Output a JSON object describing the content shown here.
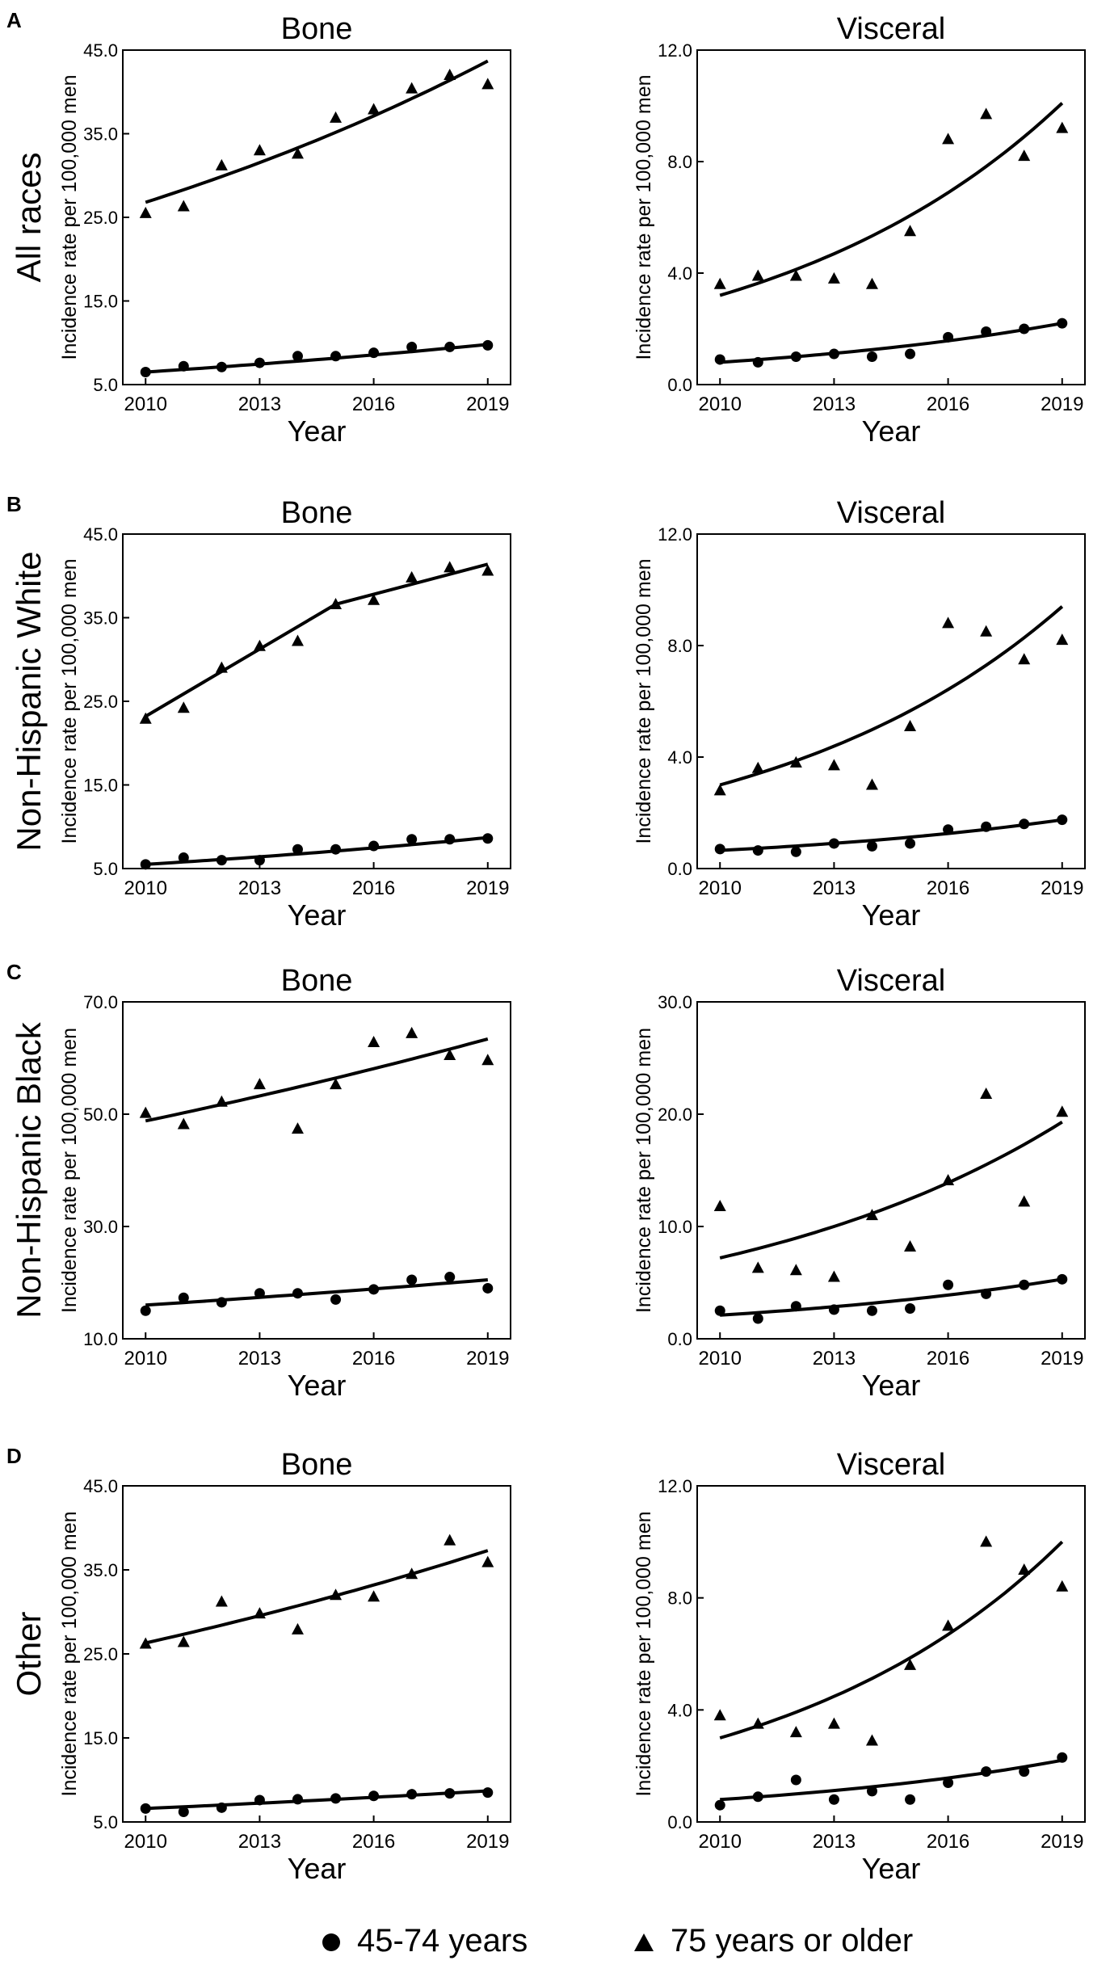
{
  "figure": {
    "legend": [
      {
        "label": "45-74 years",
        "marker": "circle"
      },
      {
        "label": "75 years or older",
        "marker": "triangle"
      }
    ]
  },
  "chart_data": [
    {
      "type": "scatter",
      "panel_letter": "A",
      "row_label": "All races",
      "title": "Bone",
      "xlabel": "Year",
      "ylabel": "Incidence rate per 100,000 men",
      "xlim": [
        2009.4,
        2019.6
      ],
      "ylim": [
        5,
        45
      ],
      "yticks": [
        "5.0",
        "15.0",
        "25.0",
        "35.0",
        "45.0"
      ],
      "xticks": [
        2010,
        2013,
        2016,
        2019
      ],
      "series": [
        {
          "name": "45-74 years",
          "marker": "circle",
          "x": [
            2010,
            2011,
            2012,
            2013,
            2014,
            2015,
            2016,
            2017,
            2018,
            2019
          ],
          "y": [
            6.5,
            7.2,
            7.1,
            7.6,
            8.4,
            8.4,
            8.8,
            9.5,
            9.5,
            9.7
          ],
          "fit": [
            6.5,
            9.8
          ]
        },
        {
          "name": "75 years or older",
          "marker": "triangle",
          "x": [
            2010,
            2011,
            2012,
            2013,
            2014,
            2015,
            2016,
            2017,
            2018,
            2019
          ],
          "y": [
            25.5,
            26.3,
            31.2,
            33.0,
            32.6,
            36.9,
            37.9,
            40.4,
            42.0,
            40.9
          ],
          "fit": [
            26.8,
            43.7
          ]
        }
      ]
    },
    {
      "type": "scatter",
      "title": "Visceral",
      "xlabel": "Year",
      "ylabel": "Incidence rate per 100,000 men",
      "xlim": [
        2009.4,
        2019.6
      ],
      "ylim": [
        0,
        12
      ],
      "yticks": [
        "0.0",
        "4.0",
        "8.0",
        "12.0"
      ],
      "xticks": [
        2010,
        2013,
        2016,
        2019
      ],
      "series": [
        {
          "name": "45-74 years",
          "marker": "circle",
          "x": [
            2010,
            2011,
            2012,
            2013,
            2014,
            2015,
            2016,
            2017,
            2018,
            2019
          ],
          "y": [
            0.9,
            0.8,
            1.0,
            1.1,
            1.0,
            1.1,
            1.7,
            1.9,
            2.0,
            2.2
          ],
          "fit": [
            0.8,
            2.2
          ]
        },
        {
          "name": "75 years or older",
          "marker": "triangle",
          "x": [
            2010,
            2011,
            2012,
            2013,
            2014,
            2015,
            2016,
            2017,
            2018,
            2019
          ],
          "y": [
            3.6,
            3.9,
            3.9,
            3.8,
            3.6,
            5.5,
            8.8,
            9.7,
            8.2,
            9.2
          ],
          "fit": [
            3.2,
            10.1
          ]
        }
      ]
    },
    {
      "type": "scatter",
      "panel_letter": "B",
      "row_label": "Non-Hispanic White",
      "title": "Bone",
      "xlabel": "Year",
      "ylabel": "Incidence rate per 100,000 men",
      "xlim": [
        2009.4,
        2019.6
      ],
      "ylim": [
        5,
        45
      ],
      "yticks": [
        "5.0",
        "15.0",
        "25.0",
        "35.0",
        "45.0"
      ],
      "xticks": [
        2010,
        2013,
        2016,
        2019
      ],
      "series": [
        {
          "name": "45-74 years",
          "marker": "circle",
          "x": [
            2010,
            2011,
            2012,
            2013,
            2014,
            2015,
            2016,
            2017,
            2018,
            2019
          ],
          "y": [
            5.5,
            6.3,
            6.0,
            6.0,
            7.3,
            7.3,
            7.7,
            8.5,
            8.5,
            8.6
          ],
          "fit": [
            5.5,
            8.7
          ]
        },
        {
          "name": "75 years or older",
          "marker": "triangle",
          "x": [
            2010,
            2011,
            2012,
            2013,
            2014,
            2015,
            2016,
            2017,
            2018,
            2019
          ],
          "y": [
            22.9,
            24.2,
            29.0,
            31.6,
            32.2,
            36.6,
            37.1,
            39.8,
            41.0,
            40.6
          ],
          "fit_points": [
            [
              2010,
              23.2
            ],
            [
              2015,
              36.6
            ],
            [
              2019,
              41.4
            ]
          ]
        }
      ]
    },
    {
      "type": "scatter",
      "title": "Visceral",
      "xlabel": "Year",
      "ylabel": "Incidence rate per 100,000 men",
      "xlim": [
        2009.4,
        2019.6
      ],
      "ylim": [
        0,
        12
      ],
      "yticks": [
        "0.0",
        "4.0",
        "8.0",
        "12.0"
      ],
      "xticks": [
        2010,
        2013,
        2016,
        2019
      ],
      "series": [
        {
          "name": "45-74 years",
          "marker": "circle",
          "x": [
            2010,
            2011,
            2012,
            2013,
            2014,
            2015,
            2016,
            2017,
            2018,
            2019
          ],
          "y": [
            0.7,
            0.65,
            0.6,
            0.9,
            0.8,
            0.9,
            1.4,
            1.5,
            1.6,
            1.75
          ],
          "fit": [
            0.65,
            1.75
          ]
        },
        {
          "name": "75 years or older",
          "marker": "triangle",
          "x": [
            2010,
            2011,
            2012,
            2013,
            2014,
            2015,
            2016,
            2017,
            2018,
            2019
          ],
          "y": [
            2.8,
            3.6,
            3.8,
            3.7,
            3.0,
            5.1,
            8.8,
            8.5,
            7.5,
            8.2
          ],
          "fit": [
            3.0,
            9.4
          ]
        }
      ]
    },
    {
      "type": "scatter",
      "panel_letter": "C",
      "row_label": "Non-Hispanic Black",
      "title": "Bone",
      "xlabel": "Year",
      "ylabel": "Incidence rate per 100,000 men",
      "xlim": [
        2009.4,
        2019.6
      ],
      "ylim": [
        10,
        70
      ],
      "yticks": [
        "10.0",
        "30.0",
        "50.0",
        "70.0"
      ],
      "xticks": [
        2010,
        2013,
        2016,
        2019
      ],
      "series": [
        {
          "name": "45-74 years",
          "marker": "circle",
          "x": [
            2010,
            2011,
            2012,
            2013,
            2014,
            2015,
            2016,
            2017,
            2018,
            2019
          ],
          "y": [
            15.0,
            17.3,
            16.5,
            18.1,
            18.1,
            17.0,
            18.8,
            20.5,
            21.0,
            19.0
          ],
          "fit": [
            16.0,
            20.5
          ]
        },
        {
          "name": "75 years or older",
          "marker": "triangle",
          "x": [
            2010,
            2011,
            2012,
            2013,
            2014,
            2015,
            2016,
            2017,
            2018,
            2019
          ],
          "y": [
            50.2,
            48.2,
            52.2,
            55.3,
            47.4,
            55.3,
            62.8,
            64.4,
            60.5,
            59.6
          ],
          "fit": [
            48.8,
            63.4
          ]
        }
      ]
    },
    {
      "type": "scatter",
      "title": "Visceral",
      "xlabel": "Year",
      "ylabel": "Incidence rate per 100,000 men",
      "xlim": [
        2009.4,
        2019.6
      ],
      "ylim": [
        0,
        30
      ],
      "yticks": [
        "0.0",
        "10.0",
        "20.0",
        "30.0"
      ],
      "xticks": [
        2010,
        2013,
        2016,
        2019
      ],
      "series": [
        {
          "name": "45-74 years",
          "marker": "circle",
          "x": [
            2010,
            2011,
            2012,
            2013,
            2014,
            2015,
            2016,
            2017,
            2018,
            2019
          ],
          "y": [
            2.5,
            1.8,
            2.9,
            2.6,
            2.5,
            2.7,
            4.8,
            4.0,
            4.8,
            5.3
          ],
          "fit": [
            2.1,
            5.3
          ]
        },
        {
          "name": "75 years or older",
          "marker": "triangle",
          "x": [
            2010,
            2011,
            2012,
            2013,
            2014,
            2015,
            2016,
            2017,
            2018,
            2019
          ],
          "y": [
            11.8,
            6.3,
            6.1,
            5.5,
            11.0,
            8.2,
            14.1,
            21.8,
            12.2,
            20.2
          ],
          "fit": [
            7.2,
            19.3
          ]
        }
      ]
    },
    {
      "type": "scatter",
      "panel_letter": "D",
      "row_label": "Other",
      "title": "Bone",
      "xlabel": "Year",
      "ylabel": "Incidence rate per 100,000 men",
      "xlim": [
        2009.4,
        2019.6
      ],
      "ylim": [
        5,
        45
      ],
      "yticks": [
        "5.0",
        "15.0",
        "25.0",
        "35.0",
        "45.0"
      ],
      "xticks": [
        2010,
        2013,
        2016,
        2019
      ],
      "series": [
        {
          "name": "45-74 years",
          "marker": "circle",
          "x": [
            2010,
            2011,
            2012,
            2013,
            2014,
            2015,
            2016,
            2017,
            2018,
            2019
          ],
          "y": [
            6.6,
            6.2,
            6.7,
            7.6,
            7.7,
            7.8,
            8.1,
            8.3,
            8.4,
            8.5
          ],
          "fit": [
            6.6,
            8.7
          ]
        },
        {
          "name": "75 years or older",
          "marker": "triangle",
          "x": [
            2010,
            2011,
            2012,
            2013,
            2014,
            2015,
            2016,
            2017,
            2018,
            2019
          ],
          "y": [
            26.2,
            26.4,
            31.2,
            29.8,
            27.9,
            32.0,
            31.8,
            34.5,
            38.5,
            35.9
          ],
          "fit": [
            26.3,
            37.3
          ]
        }
      ]
    },
    {
      "type": "scatter",
      "title": "Visceral",
      "xlabel": "Year",
      "ylabel": "Incidence rate per 100,000 men",
      "xlim": [
        2009.4,
        2019.6
      ],
      "ylim": [
        0,
        12
      ],
      "yticks": [
        "0.0",
        "4.0",
        "8.0",
        "12.0"
      ],
      "xticks": [
        2010,
        2013,
        2016,
        2019
      ],
      "series": [
        {
          "name": "45-74 years",
          "marker": "circle",
          "x": [
            2010,
            2011,
            2012,
            2013,
            2014,
            2015,
            2016,
            2017,
            2018,
            2019
          ],
          "y": [
            0.6,
            0.9,
            1.5,
            0.8,
            1.1,
            0.8,
            1.4,
            1.8,
            1.8,
            2.3
          ],
          "fit": [
            0.8,
            2.2
          ]
        },
        {
          "name": "75 years or older",
          "marker": "triangle",
          "x": [
            2010,
            2011,
            2012,
            2013,
            2014,
            2015,
            2016,
            2017,
            2018,
            2019
          ],
          "y": [
            3.8,
            3.5,
            3.2,
            3.5,
            2.9,
            5.6,
            7.0,
            10.0,
            9.0,
            8.4
          ],
          "fit": [
            3.0,
            10.0
          ]
        }
      ]
    }
  ]
}
